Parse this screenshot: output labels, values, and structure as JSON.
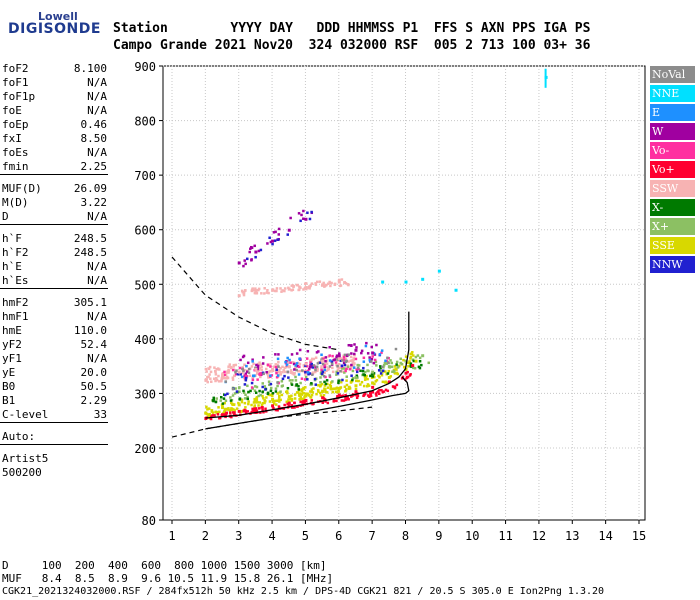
{
  "logo": {
    "top": "Lowell",
    "main": "DIGISONDE"
  },
  "header": {
    "line1": "Station        YYYY DAY   DDD HHMMSS P1  FFS S AXN PPS IGA PS",
    "line2": "Campo Grande 2021 Nov20  324 032000 RSF  005 2 713 100 03+ 36"
  },
  "params": [
    {
      "label": "foF2",
      "value": "8.100"
    },
    {
      "label": "foF1",
      "value": "N/A"
    },
    {
      "label": "foF1p",
      "value": "N/A"
    },
    {
      "label": "foE",
      "value": "N/A"
    },
    {
      "label": "foEp",
      "value": "0.46"
    },
    {
      "label": "fxI",
      "value": "8.50"
    },
    {
      "label": "foEs",
      "value": "N/A"
    },
    {
      "label": "fmin",
      "value": "2.25"
    },
    {
      "label": "MUF(D)",
      "value": "26.09"
    },
    {
      "label": "M(D)",
      "value": "3.22"
    },
    {
      "label": "D",
      "value": "N/A"
    },
    {
      "label": "h`F",
      "value": "248.5"
    },
    {
      "label": "h`F2",
      "value": "248.5"
    },
    {
      "label": "h`E",
      "value": "N/A"
    },
    {
      "label": "h`Es",
      "value": "N/A"
    },
    {
      "label": "hmF2",
      "value": "305.1"
    },
    {
      "label": "hmF1",
      "value": "N/A"
    },
    {
      "label": "hmE",
      "value": "110.0"
    },
    {
      "label": "yF2",
      "value": "52.4"
    },
    {
      "label": "yF1",
      "value": "N/A"
    },
    {
      "label": "yE",
      "value": "20.0"
    },
    {
      "label": "B0",
      "value": "50.5"
    },
    {
      "label": "B1",
      "value": "2.29"
    },
    {
      "label": "C-level",
      "value": "33"
    },
    {
      "label": "Auto:",
      "value": ""
    },
    {
      "label": "Artist5",
      "value": ""
    },
    {
      "label": "500200",
      "value": ""
    }
  ],
  "legend": [
    {
      "label": "NoVal",
      "color": "#8c8c8c",
      "text": "#ffffff"
    },
    {
      "label": "NNE",
      "color": "#00e0ff",
      "text": "#ffffff"
    },
    {
      "label": "E",
      "color": "#1e90ff",
      "text": "#ffffff"
    },
    {
      "label": "W",
      "color": "#a000a0",
      "text": "#ffffff"
    },
    {
      "label": "Vo-",
      "color": "#ff2fa0",
      "text": "#ffffff"
    },
    {
      "label": "Vo+",
      "color": "#ff0030",
      "text": "#ffffff"
    },
    {
      "label": "SSW",
      "color": "#f7b3b3",
      "text": "#ffffff"
    },
    {
      "label": "X-",
      "color": "#007a00",
      "text": "#ffffff"
    },
    {
      "label": "X+",
      "color": "#8cc063",
      "text": "#ffffff"
    },
    {
      "label": "SSE",
      "color": "#d8d800",
      "text": "#ffffff"
    },
    {
      "label": "NNW",
      "color": "#2020d0",
      "text": "#ffffff"
    }
  ],
  "footer": {
    "line1": "D     100  200  400  600  800 1000 1500 3000 [km]",
    "line2": "MUF   8.4  8.5  8.9  9.6 10.5 11.9 15.8 26.1 [MHz]",
    "line3": "CGK21_2021324032000.RSF / 284fx512h 50 kHz 2.5 km / DPS-4D CGK21 821 / 20.5 S 305.0 E Ion2Png 1.3.20"
  },
  "chart_data": {
    "type": "scatter",
    "xlim": [
      1,
      15
    ],
    "ylim": [
      80,
      900
    ],
    "x_ticks": [
      1,
      2,
      3,
      4,
      5,
      6,
      7,
      8,
      9,
      10,
      11,
      12,
      13,
      14,
      15
    ],
    "y_ticks": [
      80,
      200,
      300,
      400,
      500,
      600,
      700,
      800,
      900
    ],
    "grid": true,
    "legend_position": "right",
    "series": [
      {
        "name": "SSE",
        "values": [
          [
            2.0,
            265
          ],
          [
            2.5,
            275
          ],
          [
            3.0,
            280
          ],
          [
            3.5,
            285
          ],
          [
            4.0,
            290
          ],
          [
            4.5,
            295
          ],
          [
            5.0,
            300
          ],
          [
            5.5,
            305
          ],
          [
            6.0,
            310
          ],
          [
            6.5,
            315
          ],
          [
            7.0,
            320
          ],
          [
            7.5,
            330
          ],
          [
            8.0,
            345
          ],
          [
            8.3,
            360
          ]
        ]
      },
      {
        "name": "Vo+",
        "values": [
          [
            2.0,
            255
          ],
          [
            2.5,
            262
          ],
          [
            3.0,
            268
          ],
          [
            3.5,
            273
          ],
          [
            4.0,
            278
          ],
          [
            4.5,
            283
          ],
          [
            5.0,
            288
          ],
          [
            5.5,
            293
          ],
          [
            6.0,
            298
          ],
          [
            6.5,
            304
          ],
          [
            7.0,
            312
          ],
          [
            7.5,
            322
          ],
          [
            8.0,
            338
          ],
          [
            8.2,
            352
          ]
        ]
      },
      {
        "name": "SSW",
        "values": [
          [
            2.0,
            325
          ],
          [
            2.5,
            335
          ],
          [
            3.0,
            340
          ],
          [
            3.5,
            345
          ],
          [
            4.0,
            345
          ],
          [
            4.5,
            350
          ],
          [
            5.0,
            355
          ],
          [
            5.5,
            360
          ],
          [
            6.0,
            365
          ],
          [
            3.0,
            480
          ],
          [
            3.5,
            485
          ],
          [
            4.0,
            490
          ],
          [
            4.5,
            492
          ],
          [
            5.0,
            495
          ],
          [
            5.5,
            500
          ],
          [
            6.0,
            505
          ]
        ]
      },
      {
        "name": "W",
        "values": [
          [
            3.0,
            540
          ],
          [
            3.5,
            560
          ],
          [
            4.0,
            580
          ],
          [
            4.5,
            600
          ],
          [
            5.0,
            620
          ],
          [
            6.0,
            370
          ],
          [
            6.5,
            380
          ],
          [
            7.0,
            375
          ]
        ]
      },
      {
        "name": "NNE",
        "values": [
          [
            7.3,
            505
          ],
          [
            8.0,
            505
          ],
          [
            8.5,
            510
          ],
          [
            9.0,
            525
          ],
          [
            9.5,
            490
          ],
          [
            12.2,
            880
          ]
        ]
      },
      {
        "name": "X+",
        "values": [
          [
            6.5,
            330
          ],
          [
            7.0,
            340
          ],
          [
            7.5,
            350
          ],
          [
            8.0,
            360
          ],
          [
            8.5,
            370
          ]
        ]
      }
    ],
    "curves": {
      "profile": [
        [
          2.0,
          235
        ],
        [
          3.0,
          245
        ],
        [
          4.0,
          255
        ],
        [
          5.0,
          265
        ],
        [
          6.0,
          276
        ],
        [
          7.0,
          288
        ],
        [
          7.6,
          296
        ],
        [
          8.0,
          300
        ],
        [
          8.1,
          305
        ],
        [
          8.05,
          320
        ],
        [
          7.9,
          330
        ]
      ],
      "trace": [
        [
          2.0,
          255
        ],
        [
          3.0,
          260
        ],
        [
          4.0,
          270
        ],
        [
          5.0,
          280
        ],
        [
          6.0,
          292
        ],
        [
          7.0,
          305
        ],
        [
          7.5,
          318
        ],
        [
          7.8,
          330
        ],
        [
          8.0,
          345
        ],
        [
          8.1,
          380
        ],
        [
          8.1,
          450
        ]
      ],
      "muf_dashed": [
        [
          1.0,
          550
        ],
        [
          2.0,
          480
        ],
        [
          3.0,
          440
        ],
        [
          4.0,
          410
        ],
        [
          5.0,
          390
        ],
        [
          6.0,
          380
        ]
      ],
      "low_dashed": [
        [
          1.0,
          220
        ],
        [
          2.0,
          235
        ],
        [
          3.0,
          245
        ],
        [
          4.0,
          255
        ],
        [
          5.0,
          262
        ],
        [
          6.0,
          268
        ],
        [
          7.0,
          275
        ]
      ]
    }
  }
}
